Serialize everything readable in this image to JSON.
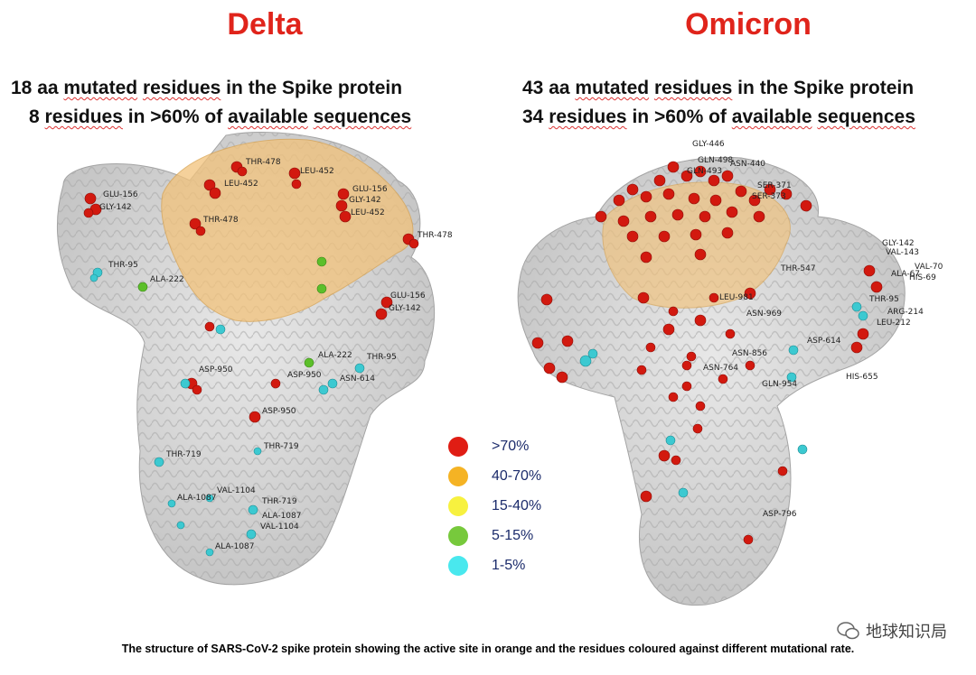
{
  "panels": {
    "delta": {
      "title": "Delta",
      "line1": [
        "18",
        "aa",
        "mutated",
        "residues",
        "in",
        "the",
        "Spike",
        "protein"
      ],
      "line2": [
        "8",
        "residues",
        "in",
        ">60%",
        "of",
        "available",
        "sequences"
      ],
      "labels": [
        "GLU-156",
        "GLY-142",
        "THR-478",
        "LEU-452",
        "LEU-452",
        "GLU-156",
        "GLY-142",
        "LEU-452",
        "THR-478",
        "THR-478",
        "THR-95",
        "ALA-222",
        "GLU-156",
        "GLY-142",
        "ALA-222",
        "THR-95",
        "ASP-950",
        "ASP-950",
        "ASN-614",
        "ASP-950",
        "THR-719",
        "THR-719",
        "VAL-1104",
        "ALA-1087",
        "THR-719",
        "ALA-1087",
        "VAL-1104",
        "ALA-1087"
      ]
    },
    "omicron": {
      "title": "Omicron",
      "line1": [
        "43",
        "aa",
        "mutated",
        "residues",
        "in",
        "the",
        "Spike",
        "protein"
      ],
      "line2": [
        "34",
        "residues",
        "in",
        ">60%",
        "of",
        "available",
        "sequences"
      ],
      "labels": [
        "GLY-446",
        "GLN-498",
        "ASN-440",
        "GLN-493",
        "SER-371",
        "SER-373",
        "GLY-142",
        "VAL-143",
        "ALA-67",
        "VAL-70",
        "HIS-69",
        "THR-547",
        "THR-95",
        "LEU-981",
        "ASN-969",
        "ARG-214",
        "LEU-212",
        "ASP-614",
        "ASN-856",
        "ASN-764",
        "HIS-655",
        "GLN-954",
        "ASP-796"
      ]
    }
  },
  "legend": [
    {
      "label": ">70%",
      "color": "#e01d14"
    },
    {
      "label": "40-70%",
      "color": "#f5b324"
    },
    {
      "label": "15-40%",
      "color": "#f7f13f"
    },
    {
      "label": "5-15%",
      "color": "#77c93c"
    },
    {
      "label": "1-5%",
      "color": "#49e8ee"
    }
  ],
  "caption": "The structure of SARS-CoV-2 spike protein showing the active site in orange and the residues coloured against different mutational rate.",
  "watermark": "地球知识局",
  "colors": {
    "high": "#d2190f",
    "low": "#3cc9d1",
    "mid": "#5cbf2a",
    "active": "#f2c27a",
    "protein": "#c9c9c9"
  }
}
